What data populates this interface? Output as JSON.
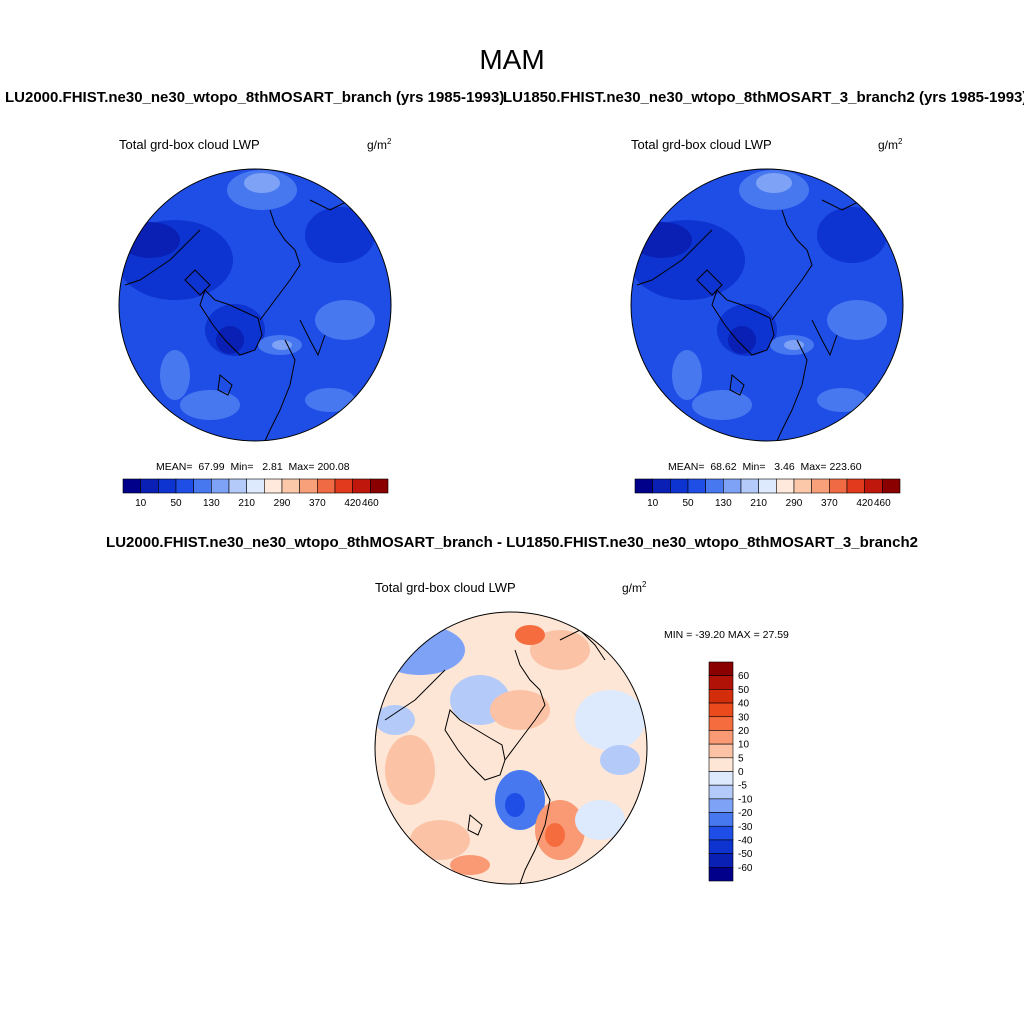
{
  "season_title": "MAM",
  "panels": [
    {
      "run_title": "LU2000.FHIST.ne30_ne30_wtopo_8thMOSART_branch (yrs 1985-1993)",
      "variable": "Total grd-box cloud LWP",
      "units": "g/m",
      "units_exponent": "2",
      "stats": {
        "mean_label": "MEAN=",
        "mean": "67.99",
        "min_label": "Min=",
        "min": "2.81",
        "max_label": "Max=",
        "max": "200.08"
      }
    },
    {
      "run_title": "LU1850.FHIST.ne30_ne30_wtopo_8thMOSART_3_branch2 (yrs 1985-1993)",
      "variable": "Total grd-box cloud LWP",
      "units": "g/m",
      "units_exponent": "2",
      "stats": {
        "mean_label": "MEAN=",
        "mean": "68.62",
        "min_label": "Min=",
        "min": "3.46",
        "max_label": "Max=",
        "max": "223.60"
      }
    }
  ],
  "abs_colorbar": {
    "colors": [
      "#00008b",
      "#0a1fb4",
      "#0d33d0",
      "#1f4ee6",
      "#4878f0",
      "#7ea2f5",
      "#b4cbfa",
      "#dde9fd",
      "#ffe8dc",
      "#fcc8aa",
      "#f8a07a",
      "#f06b43",
      "#e23a1c",
      "#c0170c",
      "#8a0000"
    ],
    "labels": [
      "10",
      "50",
      "130",
      "210",
      "290",
      "370",
      "420",
      "460"
    ]
  },
  "diff": {
    "title": "LU2000.FHIST.ne30_ne30_wtopo_8thMOSART_branch - LU1850.FHIST.ne30_ne30_wtopo_8thMOSART_3_branch2",
    "variable": "Total grd-box cloud LWP",
    "units": "g/m",
    "units_exponent": "2",
    "minmax_text": "MIN = -39.20 MAX =  27.59",
    "colorbar": {
      "colors": [
        "#8a0000",
        "#b01208",
        "#d42d0c",
        "#eb4a1c",
        "#f56d3f",
        "#f99a75",
        "#fcc2a5",
        "#fde6d6",
        "#dde9fd",
        "#b4cbfa",
        "#7ea2f5",
        "#4878f0",
        "#1f4ee6",
        "#0d33d0",
        "#0a1fb4",
        "#00008b"
      ],
      "labels": [
        "60",
        "50",
        "40",
        "30",
        "20",
        "10",
        "5",
        "0",
        "-5",
        "-10",
        "-20",
        "-30",
        "-40",
        "-50",
        "-60"
      ]
    }
  }
}
